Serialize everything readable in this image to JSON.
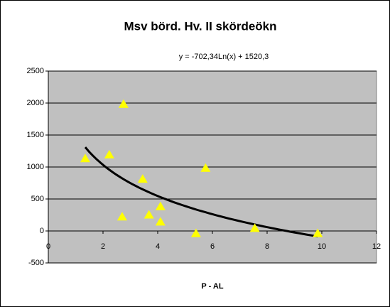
{
  "chart_data": {
    "type": "scatter",
    "title": "Msv börd. Hv. II skördeökn",
    "annotation": "y = -702,34Ln(x) + 1520,3",
    "x_label": "P - AL",
    "x": [
      1.35,
      2.23,
      2.75,
      2.7,
      3.45,
      3.68,
      4.1,
      4.1,
      5.4,
      5.75,
      7.55,
      9.85
    ],
    "series": [
      {
        "name": null,
        "color": "#ffff00",
        "values": [
          1130,
          1190,
          1980,
          220,
          810,
          250,
          380,
          140,
          -40,
          980,
          40,
          -40
        ]
      }
    ],
    "trendline": {
      "type": "log",
      "a": -702.34,
      "b": 1520.3,
      "color": "#000000"
    },
    "xlim": [
      0,
      12
    ],
    "xticks": [
      0,
      2,
      4,
      6,
      8,
      10,
      12
    ],
    "ylim": [
      -500,
      2500
    ],
    "yticks": [
      -500,
      0,
      500,
      1000,
      1500,
      2000,
      2500
    ],
    "grid": true,
    "plot_background": "#c0c0c0"
  }
}
